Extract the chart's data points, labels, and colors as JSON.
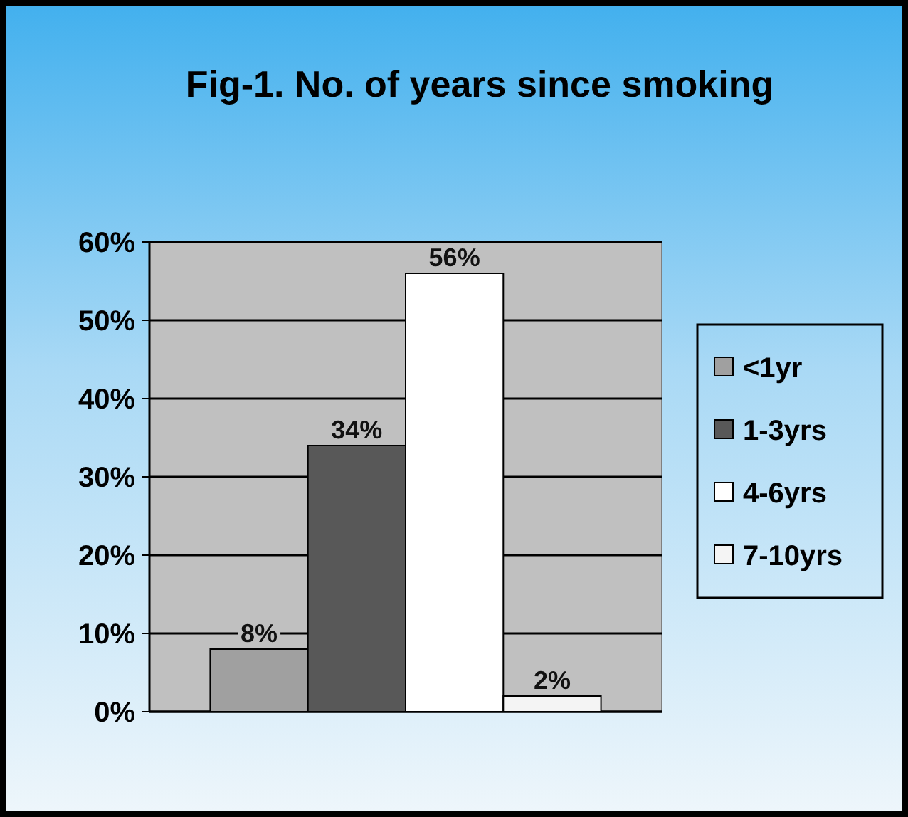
{
  "chart_data": {
    "type": "bar",
    "title": "Fig-1. No. of years since smoking",
    "categories": [
      null
    ],
    "series": [
      {
        "name": "<1yr",
        "color": "#a0a0a0",
        "values": [
          8
        ],
        "value_labels": [
          "8%"
        ]
      },
      {
        "name": "1-3yrs",
        "color": "#585858",
        "values": [
          34
        ],
        "value_labels": [
          "34%"
        ]
      },
      {
        "name": "4-6yrs",
        "color": "#ffffff",
        "values": [
          56
        ],
        "value_labels": [
          "56%"
        ]
      },
      {
        "name": "7-10yrs",
        "color": "#f4f4f4",
        "values": [
          2
        ],
        "value_labels": [
          "2%"
        ]
      }
    ],
    "ylim": [
      0,
      60
    ],
    "yticks": [
      {
        "value": 0,
        "label": "0%"
      },
      {
        "value": 10,
        "label": "10%"
      },
      {
        "value": 20,
        "label": "20%"
      },
      {
        "value": 30,
        "label": "30%"
      },
      {
        "value": 40,
        "label": "40%"
      },
      {
        "value": 50,
        "label": "50%"
      },
      {
        "value": 60,
        "label": "60%"
      }
    ],
    "grid": "y",
    "legend": "right"
  }
}
